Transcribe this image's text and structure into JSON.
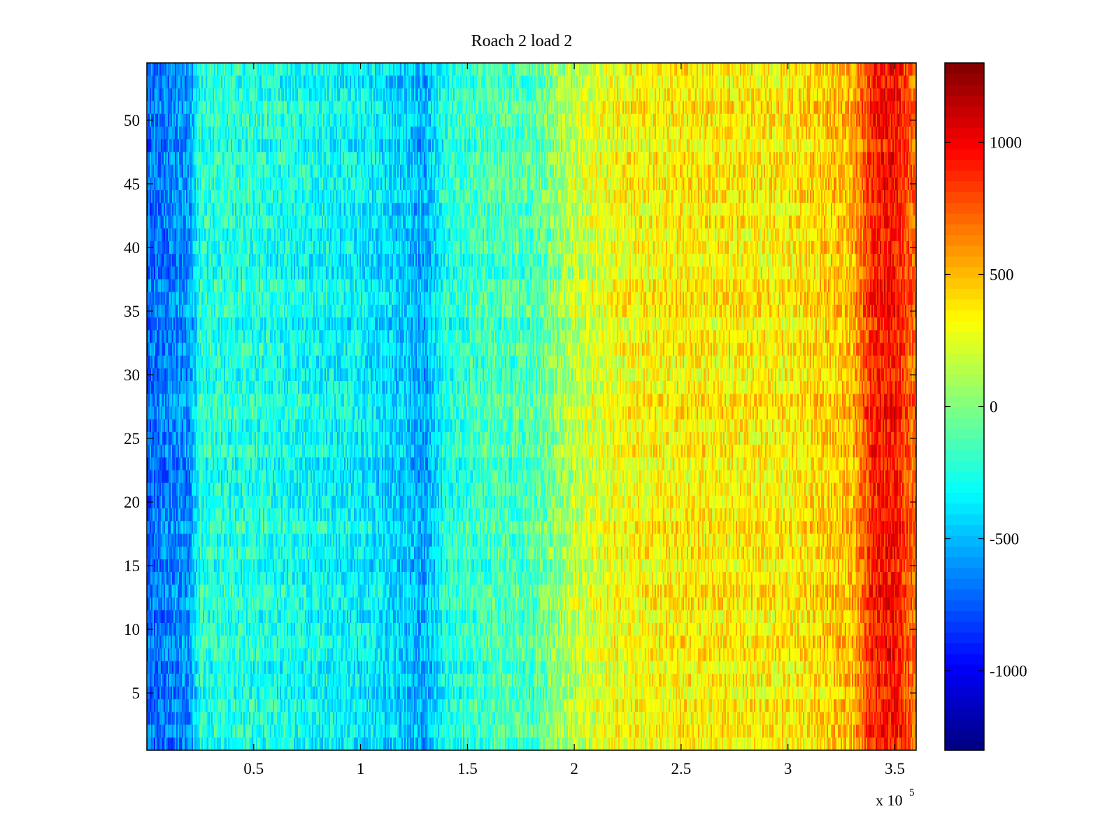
{
  "chart_data": {
    "type": "heatmap",
    "title": "Roach 2 load 2",
    "xlabel": "",
    "ylabel": "",
    "x_exponent_label": "x 10",
    "x_exponent_power": "5",
    "xlim": [
      0,
      360000
    ],
    "ylim": [
      0.5,
      54.5
    ],
    "x_ticks": [
      {
        "value": 50000,
        "label": "0.5"
      },
      {
        "value": 100000,
        "label": "1"
      },
      {
        "value": 150000,
        "label": "1.5"
      },
      {
        "value": 200000,
        "label": "2"
      },
      {
        "value": 250000,
        "label": "2.5"
      },
      {
        "value": 300000,
        "label": "3"
      },
      {
        "value": 350000,
        "label": "3.5"
      }
    ],
    "y_ticks": [
      {
        "value": 5,
        "label": "5"
      },
      {
        "value": 10,
        "label": "10"
      },
      {
        "value": 15,
        "label": "15"
      },
      {
        "value": 20,
        "label": "20"
      },
      {
        "value": 25,
        "label": "25"
      },
      {
        "value": 30,
        "label": "30"
      },
      {
        "value": 35,
        "label": "35"
      },
      {
        "value": 40,
        "label": "40"
      },
      {
        "value": 45,
        "label": "45"
      },
      {
        "value": 50,
        "label": "50"
      }
    ],
    "rows": 54,
    "colormap": "jet",
    "clim": [
      -1300,
      1300
    ],
    "colorbar_ticks": [
      {
        "value": 1000,
        "label": "1000"
      },
      {
        "value": 500,
        "label": "500"
      },
      {
        "value": 0,
        "label": "0"
      },
      {
        "value": -500,
        "label": "-500"
      },
      {
        "value": -1000,
        "label": "-1000"
      }
    ],
    "column_trend": {
      "x": [
        0,
        10000,
        20000,
        25000,
        50000,
        100000,
        120000,
        130000,
        140000,
        160000,
        180000,
        200000,
        220000,
        250000,
        300000,
        330000,
        340000,
        350000,
        360000
      ],
      "mean_value": [
        -700,
        -650,
        -600,
        -250,
        -250,
        -350,
        -450,
        -550,
        -250,
        -150,
        -150,
        150,
        300,
        350,
        350,
        500,
        900,
        950,
        650
      ]
    },
    "noise_amplitude": 200,
    "grid": false,
    "legend": "none"
  }
}
